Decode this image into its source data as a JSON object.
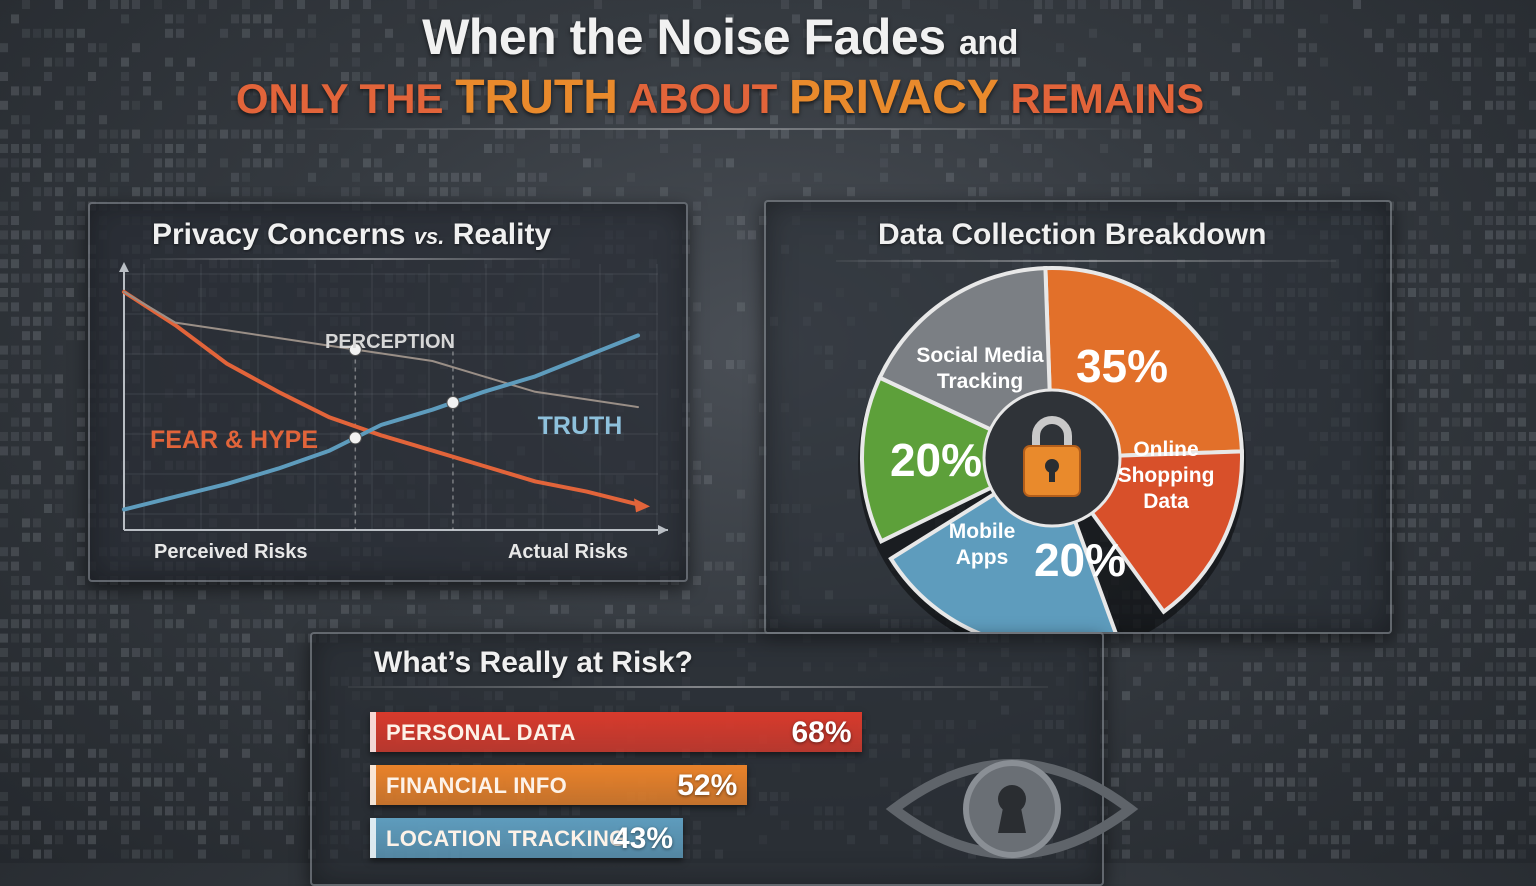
{
  "headline": {
    "line1_main": "When the Noise Fades",
    "line1_small": "and",
    "line2_part1": "ONLY THE",
    "line2_emph": "TRUTH",
    "line2_part2": "ABOUT",
    "line2_emph2": "PRIVACY",
    "line2_part3": "REMAINS"
  },
  "colors": {
    "orange_red": "#e2643a",
    "orange": "#e98a2c",
    "blue": "#5e9cbd",
    "green": "#5da03a",
    "gray": "#7b7f84",
    "red": "#d83a2c"
  },
  "icons": [
    "lock-icon",
    "eye-keyhole-icon",
    "up-arrow-icon"
  ],
  "chart_data": [
    {
      "type": "line",
      "title": "Privacy Concerns vs. Reality",
      "title_main": "Privacy Concerns",
      "title_vs": "vs.",
      "title_end": "Reality",
      "xlabel_left": "Perceived Risks",
      "xlabel_right": "Actual Risks",
      "x": [
        0,
        1,
        2,
        3,
        4,
        5,
        6,
        7,
        8,
        9,
        10
      ],
      "xlim": [
        0,
        10
      ],
      "ylim": [
        0,
        10
      ],
      "grid": true,
      "series": [
        {
          "name": "FEAR & HYPE",
          "values": [
            9.3,
            8.0,
            6.5,
            5.4,
            4.4,
            3.7,
            3.1,
            2.5,
            1.9,
            1.5,
            1.0
          ],
          "color": "#e2643a"
        },
        {
          "name": "PERCEPTION",
          "values": [
            9.3,
            8.1,
            7.8,
            7.5,
            7.2,
            6.9,
            6.6,
            6.0,
            5.4,
            5.1,
            4.8
          ],
          "color": "#9a8f87"
        },
        {
          "name": "TRUTH",
          "values": [
            0.8,
            1.3,
            1.8,
            2.4,
            3.1,
            4.1,
            4.7,
            5.4,
            6.0,
            6.8,
            7.6
          ],
          "color": "#5e9cbd"
        }
      ],
      "markers": [
        {
          "series": "PERCEPTION",
          "x": 4.5
        },
        {
          "series": "TRUTH",
          "x": 6.4
        },
        {
          "series": "TRUTH",
          "x": 4.5
        }
      ],
      "vlines": [
        4.5,
        6.4
      ]
    },
    {
      "type": "pie",
      "title": "Data Collection Breakdown",
      "slices": [
        {
          "label": "Social Media Tracking",
          "value": 35,
          "value_label": "",
          "color": "#e2702a"
        },
        {
          "label": "",
          "value": 35,
          "value_label": "35%",
          "color": "#d8502a"
        },
        {
          "label": "Online Shopping Data",
          "value": 25,
          "value_label": "",
          "color": "#5e9cbd"
        },
        {
          "label": "Mobile Apps",
          "value": 20,
          "value_label": "20%",
          "color": "#5da03a"
        },
        {
          "label": "",
          "value": 20,
          "value_label": "20%",
          "color": "#7b7f84"
        }
      ]
    },
    {
      "type": "bar",
      "orientation": "horizontal",
      "title": "What’s Really at Risk?",
      "categories": [
        "PERSONAL DATA",
        "FINANCIAL INFO",
        "LOCATION TRACKING"
      ],
      "values": [
        68,
        52,
        43
      ],
      "value_labels": [
        "68%",
        "52%",
        "43%"
      ],
      "colors": [
        "#d83a2c",
        "#e9822a",
        "#5e9cbd"
      ],
      "xlim": [
        0,
        100
      ]
    }
  ]
}
